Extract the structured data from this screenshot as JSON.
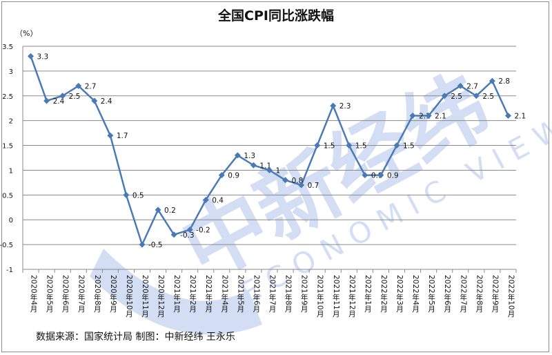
{
  "chart_data": {
    "type": "line",
    "title": "全国CPI同比涨跌幅",
    "ylabel": "（%）",
    "xlabel": "",
    "ylim": [
      -1,
      3.5
    ],
    "yticks": [
      -1,
      -0.5,
      0,
      0.5,
      1,
      1.5,
      2,
      2.5,
      3,
      3.5
    ],
    "grid": true,
    "categories": [
      "2020年4月",
      "2020年5月",
      "2020年6月",
      "2020年7月",
      "2020年8月",
      "2020年9月",
      "2020年10月",
      "2020年11月",
      "2020年12月",
      "2021年1月",
      "2021年2月",
      "2021年3月",
      "2021年4月",
      "2021年5月",
      "2021年6月",
      "2021年7月",
      "2021年8月",
      "2021年9月",
      "2021年10月",
      "2021年11月",
      "2021年12月",
      "2022年1月",
      "2022年2月",
      "2022年3月",
      "2022年4月",
      "2022年5月",
      "2022年6月",
      "2022年7月",
      "2022年8月",
      "2022年9月",
      "2022年10月"
    ],
    "values": [
      3.3,
      2.4,
      2.5,
      2.7,
      2.4,
      1.7,
      0.5,
      -0.5,
      0.2,
      -0.3,
      -0.2,
      0.4,
      0.9,
      1.3,
      1.1,
      1,
      0.8,
      0.7,
      1.5,
      2.3,
      1.5,
      0.9,
      0.9,
      1.5,
      2.1,
      2.1,
      2.5,
      2.7,
      2.5,
      2.8,
      2.1
    ],
    "line_color": "#4a7ab5",
    "marker": "diamond"
  },
  "source_text": "数据来源：国家统计局 制图：中新经纬 王永乐",
  "watermark": {
    "cn": "中新经纬",
    "en": "ECONOMIC VIEW"
  }
}
